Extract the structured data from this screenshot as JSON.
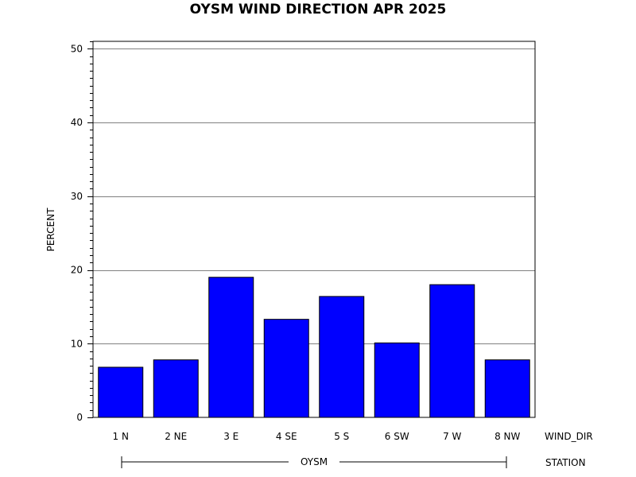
{
  "chart_data": {
    "type": "bar",
    "title": "OYSM WIND DIRECTION APR 2025",
    "ylabel": "PERCENT",
    "xlabel": "WIND_DIR",
    "group_axis_label": "STATION",
    "group_label": "OYSM",
    "categories": [
      "1 N",
      "2 NE",
      "3 E",
      "4 SE",
      "5 S",
      "6 SW",
      "7 W",
      "8 NW"
    ],
    "values": [
      6.8,
      7.8,
      19.0,
      13.3,
      16.4,
      10.1,
      18.0,
      7.8
    ],
    "ylim": [
      0,
      51
    ],
    "yticks": [
      0,
      10,
      20,
      30,
      40,
      50
    ],
    "ytick_labels": [
      "0",
      "10",
      "20",
      "30",
      "40",
      "50"
    ],
    "grid": true,
    "bar_color": "#0000ff",
    "bar_edge_color": "#000000"
  }
}
